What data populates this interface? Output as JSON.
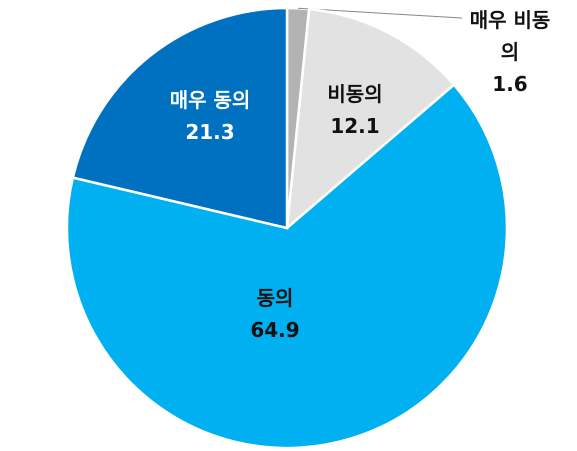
{
  "chart_data": {
    "type": "pie",
    "categories": [
      "매우 비동의",
      "비동의",
      "동의",
      "매우 동의"
    ],
    "values": [
      1.6,
      12.1,
      64.9,
      21.3
    ],
    "colors": [
      "#b3b3b3",
      "#e2e2e2",
      "#00b0f0",
      "#0070c0"
    ],
    "label_colors": [
      "#111111",
      "#111111",
      "#111111",
      "#ffffff"
    ]
  }
}
